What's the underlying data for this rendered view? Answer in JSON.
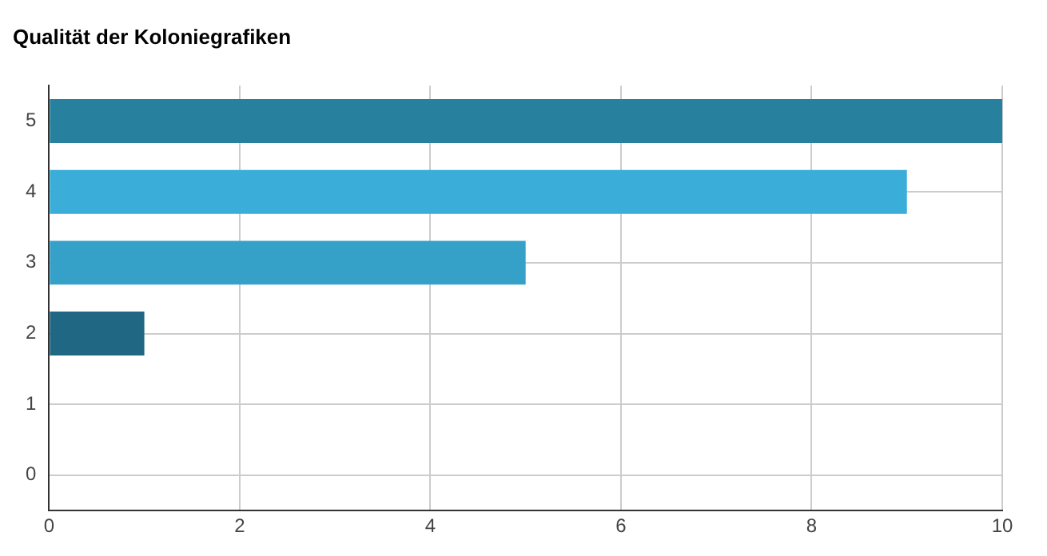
{
  "chart_data": {
    "type": "bar",
    "orientation": "horizontal",
    "title": "Qualität der Koloniegrafiken",
    "categories": [
      "5",
      "4",
      "3",
      "2",
      "1",
      "0"
    ],
    "values": [
      10,
      9,
      5,
      1,
      0,
      0
    ],
    "colors": [
      "#27809e",
      "#3aaed8",
      "#35a0c8",
      "#1f6782",
      "#3aaed8",
      "#3aaed8"
    ],
    "xlim": [
      0,
      10
    ],
    "xticks": [
      0,
      2,
      4,
      6,
      8,
      10
    ],
    "grid": true,
    "legend": false
  }
}
